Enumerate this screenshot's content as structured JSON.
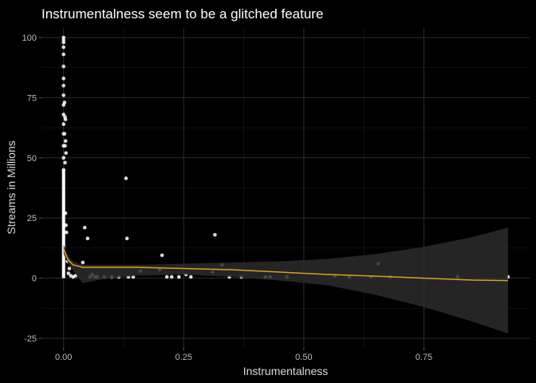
{
  "chart_data": {
    "type": "scatter",
    "title": "Instrumentalness seem to be a glitched feature",
    "xlabel": "Instrumentalness",
    "ylabel": "Streams in Millions",
    "xlim": [
      -0.046,
      0.97
    ],
    "ylim": [
      -29,
      104
    ],
    "x_ticks": [
      0,
      0.25,
      0.5,
      0.75
    ],
    "x_tick_labels": [
      "0.00",
      "0.25",
      "0.50",
      "0.75"
    ],
    "y_ticks": [
      -25,
      0,
      25,
      50,
      75,
      100
    ],
    "y_tick_labels": [
      "-25",
      "0",
      "25",
      "50",
      "75",
      "100"
    ],
    "grid": true,
    "background": "#000000",
    "colors": {
      "points": "#ffffff",
      "trend": "#d9a21b",
      "band": "#2b2b2b",
      "grid_major": "#2e2e2e",
      "grid_minor": "#1a1a1a"
    },
    "points_x": [
      0,
      0,
      0,
      0,
      0,
      0,
      0,
      0,
      0,
      0,
      0,
      0,
      0,
      0,
      0,
      0,
      0.002,
      0.003,
      0.004,
      0.002,
      0.004,
      0.003,
      0.005,
      0.003,
      0.004,
      0.005,
      0.006,
      0.008,
      0.01,
      0.012,
      0.015,
      0.02,
      0.025,
      0.04,
      0.044,
      0.05,
      0.055,
      0.06,
      0.065,
      0.07,
      0.085,
      0.1,
      0.115,
      0.13,
      0.132,
      0.135,
      0.145,
      0.16,
      0.2,
      0.205,
      0.215,
      0.225,
      0.24,
      0.255,
      0.265,
      0.31,
      0.315,
      0.33,
      0.345,
      0.37,
      0.42,
      0.43,
      0.465,
      0.565,
      0.595,
      0.64,
      0.655,
      0.68,
      0.82,
      0.925
    ],
    "points_y": [
      100,
      99,
      98,
      96,
      93,
      88,
      83,
      80,
      76,
      72,
      68,
      64,
      60,
      55,
      50,
      45,
      73,
      67,
      66,
      60,
      57,
      55,
      52,
      48,
      27,
      22,
      19,
      7,
      2,
      4,
      1,
      0.5,
      1,
      6.5,
      21,
      16.5,
      0.5,
      1.5,
      0.5,
      0.5,
      0.5,
      0.5,
      0.5,
      41.5,
      16.5,
      0.5,
      0.5,
      3,
      3.5,
      9.5,
      0.5,
      0.5,
      0.5,
      1.5,
      0.5,
      2.5,
      18,
      5.5,
      0.5,
      0.5,
      0.5,
      0.5,
      0.5,
      1,
      0.5,
      0.5,
      6,
      0.5,
      0.5,
      0.5
    ],
    "dense_column": {
      "x": 0,
      "y_min": 0,
      "y_max": 45
    },
    "trend_x": [
      0,
      0.01,
      0.02,
      0.04,
      0.08,
      0.15,
      0.25,
      0.35,
      0.45,
      0.55,
      0.65,
      0.75,
      0.85,
      0.925
    ],
    "trend_y": [
      12,
      7.5,
      5.5,
      4.5,
      4.5,
      4.5,
      4,
      3.5,
      2.5,
      1.5,
      0.8,
      0,
      -0.8,
      -1
    ],
    "band_upper": [
      14,
      9,
      7,
      5.5,
      5.5,
      5.5,
      6,
      6.5,
      7,
      8,
      10,
      13,
      17,
      21
    ],
    "band_lower": [
      10,
      6,
      3,
      -2,
      -0.5,
      1,
      1.5,
      0.5,
      -1,
      -3,
      -7,
      -12,
      -18,
      -23
    ]
  }
}
